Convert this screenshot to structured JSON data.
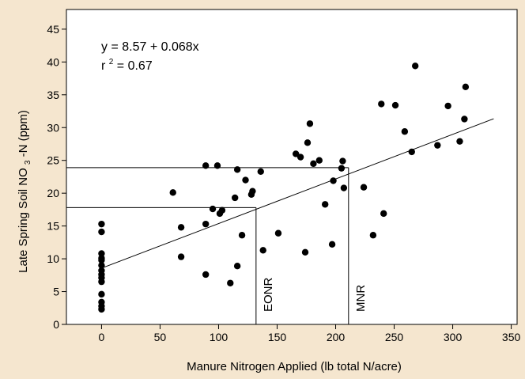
{
  "chart_data": {
    "type": "scatter",
    "xlabel": "Manure Nitrogen Applied (lb total N/acre)",
    "ylabel_parts": [
      "Late Spring Soil NO",
      "3",
      "-N (ppm)"
    ],
    "xlim": [
      -30,
      355
    ],
    "ylim": [
      0,
      48
    ],
    "xticks": [
      0,
      50,
      100,
      150,
      200,
      250,
      300,
      350
    ],
    "yticks": [
      0,
      5,
      10,
      15,
      20,
      25,
      30,
      35,
      40,
      45
    ],
    "grid": false,
    "equation": "y = 8.57 + 0.068x",
    "r2_prefix": "r",
    "r2_exp": "2",
    "r2_value": " = 0.67",
    "fit_line": {
      "intercept": 8.57,
      "slope": 0.068,
      "x_range": [
        0,
        335
      ]
    },
    "reference_lines": [
      {
        "label": "EONR",
        "x": 132,
        "y": 17.8
      },
      {
        "label": "MNR",
        "x": 211,
        "y": 23.9
      }
    ],
    "points": [
      [
        0,
        15.3
      ],
      [
        0,
        14.1
      ],
      [
        0,
        10.8
      ],
      [
        0,
        10.1
      ],
      [
        0,
        9.8
      ],
      [
        0,
        9.0
      ],
      [
        0,
        8.2
      ],
      [
        0,
        7.6
      ],
      [
        0,
        7.1
      ],
      [
        0,
        6.5
      ],
      [
        0,
        4.6
      ],
      [
        0,
        3.4
      ],
      [
        0,
        2.8
      ],
      [
        0,
        2.3
      ],
      [
        61,
        20.1
      ],
      [
        68,
        14.8
      ],
      [
        68,
        10.3
      ],
      [
        89,
        24.2
      ],
      [
        89,
        15.3
      ],
      [
        89,
        7.6
      ],
      [
        95,
        17.6
      ],
      [
        99,
        24.2
      ],
      [
        101,
        16.9
      ],
      [
        103,
        17.4
      ],
      [
        110,
        6.3
      ],
      [
        114,
        19.3
      ],
      [
        116,
        8.9
      ],
      [
        116,
        23.6
      ],
      [
        120,
        13.6
      ],
      [
        123,
        22.0
      ],
      [
        128,
        19.8
      ],
      [
        129,
        20.3
      ],
      [
        136,
        23.3
      ],
      [
        138,
        11.3
      ],
      [
        151,
        13.9
      ],
      [
        166,
        26.0
      ],
      [
        170,
        25.5
      ],
      [
        174,
        11.0
      ],
      [
        176,
        27.7
      ],
      [
        178,
        30.6
      ],
      [
        181,
        24.5
      ],
      [
        186,
        25.0
      ],
      [
        191,
        18.3
      ],
      [
        197,
        12.2
      ],
      [
        198,
        21.9
      ],
      [
        205,
        23.8
      ],
      [
        206,
        24.9
      ],
      [
        207,
        20.8
      ],
      [
        224,
        20.9
      ],
      [
        232,
        13.6
      ],
      [
        239,
        33.6
      ],
      [
        241,
        16.9
      ],
      [
        251,
        33.4
      ],
      [
        259,
        29.4
      ],
      [
        265,
        26.3
      ],
      [
        268,
        39.4
      ],
      [
        287,
        27.3
      ],
      [
        296,
        33.3
      ],
      [
        306,
        27.9
      ],
      [
        310,
        31.3
      ],
      [
        311,
        36.2
      ]
    ]
  }
}
